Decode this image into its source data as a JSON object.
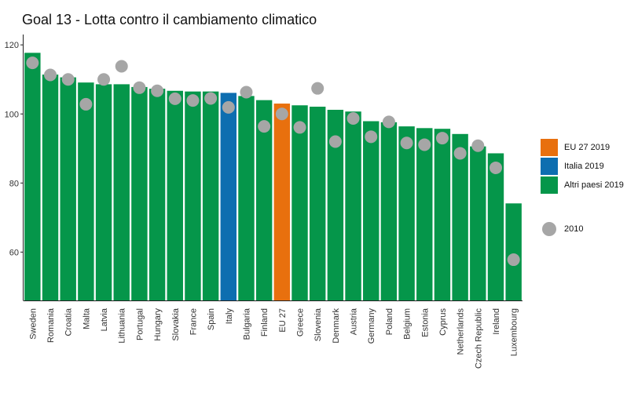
{
  "chart_data": {
    "type": "bar",
    "title": "Goal 13 - Lotta contro il cambiamento climatico",
    "xlabel": "",
    "ylabel": "",
    "ylim": [
      46,
      123
    ],
    "yticks": [
      60,
      80,
      100,
      120
    ],
    "grid": false,
    "legend_position": "right",
    "categories": [
      "Sweden",
      "Romania",
      "Croatia",
      "Malta",
      "Latvia",
      "Lithuania",
      "Portugal",
      "Hungary",
      "Slovakia",
      "France",
      "Spain",
      "Italy",
      "Bulgaria",
      "Finland",
      "EU 27",
      "Greece",
      "Slovenia",
      "Denmark",
      "Austria",
      "Germany",
      "Poland",
      "Belgium",
      "Estonia",
      "Cyprus",
      "Netherlands",
      "Czech Republic",
      "Ireland",
      "Luxembourg"
    ],
    "groups": [
      "Altri paesi 2019",
      "Altri paesi 2019",
      "Altri paesi 2019",
      "Altri paesi 2019",
      "Altri paesi 2019",
      "Altri paesi 2019",
      "Altri paesi 2019",
      "Altri paesi 2019",
      "Altri paesi 2019",
      "Altri paesi 2019",
      "Altri paesi 2019",
      "Italia 2019",
      "Altri paesi 2019",
      "Altri paesi 2019",
      "EU 27 2019",
      "Altri paesi 2019",
      "Altri paesi 2019",
      "Altri paesi 2019",
      "Altri paesi 2019",
      "Altri paesi 2019",
      "Altri paesi 2019",
      "Altri paesi 2019",
      "Altri paesi 2019",
      "Altri paesi 2019",
      "Altri paesi 2019",
      "Altri paesi 2019",
      "Altri paesi 2019",
      "Altri paesi 2019"
    ],
    "series": [
      {
        "name": "2019",
        "values": [
          117.7,
          111.4,
          110.6,
          109.1,
          108.6,
          108.6,
          107.8,
          107.3,
          106.7,
          106.5,
          106.5,
          106.1,
          105.2,
          104.0,
          103.0,
          102.5,
          102.1,
          101.2,
          100.7,
          97.9,
          97.6,
          96.4,
          95.9,
          95.7,
          94.2,
          90.6,
          88.6,
          74.1
        ]
      },
      {
        "name": "2010",
        "values": [
          114.8,
          111.3,
          110.0,
          102.8,
          110.0,
          113.8,
          107.6,
          106.7,
          104.4,
          103.9,
          104.5,
          101.9,
          106.3,
          96.4,
          100.0,
          96.1,
          107.4,
          92.0,
          98.7,
          93.4,
          97.7,
          91.6,
          91.1,
          93.0,
          88.6,
          90.8,
          84.4,
          57.8
        ]
      }
    ],
    "colors": {
      "EU 27 2019": "#e8700e",
      "Italia 2019": "#0d6eb0",
      "Altri paesi 2019": "#05964a",
      "2010": "#a6a6a6"
    },
    "legend": [
      {
        "label": "EU 27 2019",
        "color": "#e8700e"
      },
      {
        "label": "Italia 2019",
        "color": "#0d6eb0"
      },
      {
        "label": "Altri paesi 2019",
        "color": "#05964a"
      }
    ],
    "legend_2010": {
      "label": "2010",
      "color": "#a6a6a6"
    }
  }
}
